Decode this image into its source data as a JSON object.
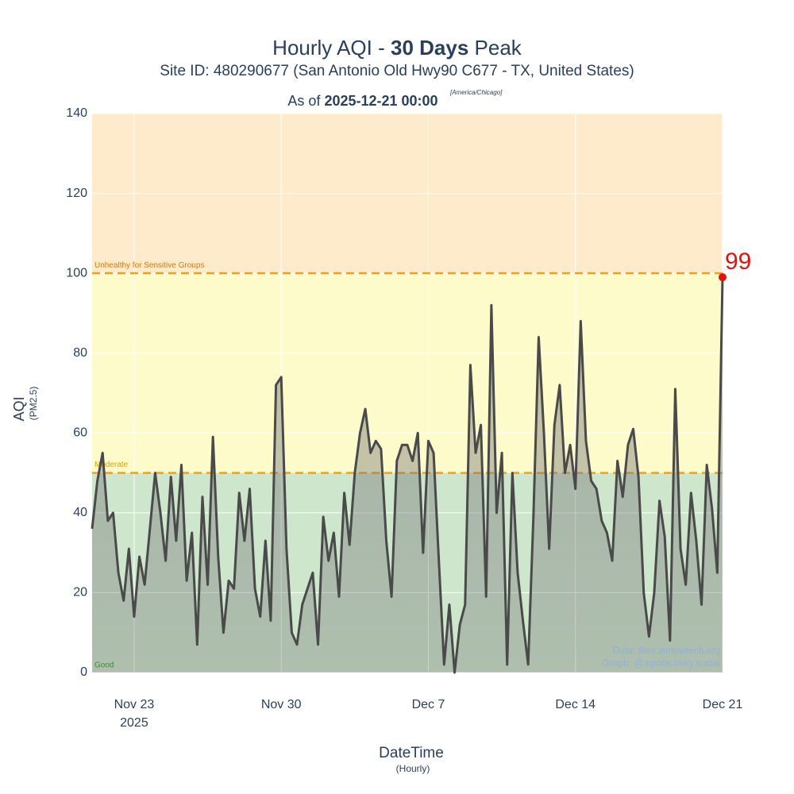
{
  "chart_data": {
    "type": "line",
    "title_parts": [
      "Hourly AQI - ",
      "30 Days",
      " Peak"
    ],
    "subtitle": "Site ID: 480290677 (San Antonio Old Hwy90 C677 - TX, United States)",
    "asof_parts": [
      "As of ",
      "2025-12-21 00:00"
    ],
    "timezone": "[America/Chicago]",
    "y_title": "AQI",
    "y_subtitle": "(PM2.5)",
    "x_title": "DateTime",
    "x_subtitle": "(Hourly)",
    "credits": [
      "Data: files.airnowtech.org",
      "Graph: @aqiobs.bsky.social"
    ],
    "xlim": [
      "2025-11-21 00:00",
      "2025-12-21 00:00"
    ],
    "xticks": [
      {
        "value": "2025-11-23 00:00",
        "label": "Nov 23"
      },
      {
        "value": "2025-11-30 00:00",
        "label": "Nov 30"
      },
      {
        "value": "2025-12-07 00:00",
        "label": "Dec 7"
      },
      {
        "value": "2025-12-14 00:00",
        "label": "Dec 14"
      },
      {
        "value": "2025-12-21 00:00",
        "label": "Dec 21"
      }
    ],
    "xtick_year": "2025",
    "ylim": [
      0,
      140
    ],
    "yticks": [
      0,
      20,
      40,
      60,
      80,
      100,
      120,
      140
    ],
    "grid": true,
    "bands": [
      {
        "name": "Good",
        "from": 0,
        "to": 50,
        "color": "#cde6cc",
        "label_color": "#1a9a1a"
      },
      {
        "name": "Moderate",
        "from": 50,
        "to": 100,
        "color": "#fefbcb",
        "label_color": "#e0a000"
      },
      {
        "name": "Unhealthy for Sensitive Groups",
        "from": 100,
        "to": 140,
        "color": "#fdebcb",
        "label_color": "#e07800"
      }
    ],
    "series": [
      {
        "name": "AQI",
        "color": "#4a4a4a",
        "peak_color": "#e3120b",
        "x": [
          "2025-11-21 00:00",
          "2025-11-21 06:00",
          "2025-11-21 12:00",
          "2025-11-21 18:00",
          "2025-11-22 00:00",
          "2025-11-22 06:00",
          "2025-11-22 12:00",
          "2025-11-22 18:00",
          "2025-11-23 00:00",
          "2025-11-23 06:00",
          "2025-11-23 12:00",
          "2025-11-23 18:00",
          "2025-11-24 00:00",
          "2025-11-24 06:00",
          "2025-11-24 12:00",
          "2025-11-24 18:00",
          "2025-11-25 00:00",
          "2025-11-25 06:00",
          "2025-11-25 12:00",
          "2025-11-25 18:00",
          "2025-11-26 00:00",
          "2025-11-26 06:00",
          "2025-11-26 12:00",
          "2025-11-26 18:00",
          "2025-11-27 00:00",
          "2025-11-27 06:00",
          "2025-11-27 12:00",
          "2025-11-27 18:00",
          "2025-11-28 00:00",
          "2025-11-28 06:00",
          "2025-11-28 12:00",
          "2025-11-28 18:00",
          "2025-11-29 00:00",
          "2025-11-29 06:00",
          "2025-11-29 12:00",
          "2025-11-29 18:00",
          "2025-11-30 00:00",
          "2025-11-30 06:00",
          "2025-11-30 12:00",
          "2025-11-30 18:00",
          "2025-12-01 00:00",
          "2025-12-01 06:00",
          "2025-12-01 12:00",
          "2025-12-01 18:00",
          "2025-12-02 00:00",
          "2025-12-02 06:00",
          "2025-12-02 12:00",
          "2025-12-02 18:00",
          "2025-12-03 00:00",
          "2025-12-03 06:00",
          "2025-12-03 12:00",
          "2025-12-03 18:00",
          "2025-12-04 00:00",
          "2025-12-04 06:00",
          "2025-12-04 12:00",
          "2025-12-04 18:00",
          "2025-12-05 00:00",
          "2025-12-05 06:00",
          "2025-12-05 12:00",
          "2025-12-05 18:00",
          "2025-12-06 00:00",
          "2025-12-06 06:00",
          "2025-12-06 12:00",
          "2025-12-06 18:00",
          "2025-12-07 00:00",
          "2025-12-07 06:00",
          "2025-12-07 12:00",
          "2025-12-07 18:00",
          "2025-12-08 00:00",
          "2025-12-08 06:00",
          "2025-12-08 12:00",
          "2025-12-08 18:00",
          "2025-12-09 00:00",
          "2025-12-09 06:00",
          "2025-12-09 12:00",
          "2025-12-09 18:00",
          "2025-12-10 00:00",
          "2025-12-10 06:00",
          "2025-12-10 12:00",
          "2025-12-10 18:00",
          "2025-12-11 00:00",
          "2025-12-11 06:00",
          "2025-12-11 12:00",
          "2025-12-11 18:00",
          "2025-12-12 00:00",
          "2025-12-12 06:00",
          "2025-12-12 12:00",
          "2025-12-12 18:00",
          "2025-12-13 00:00",
          "2025-12-13 06:00",
          "2025-12-13 12:00",
          "2025-12-13 18:00",
          "2025-12-14 00:00",
          "2025-12-14 06:00",
          "2025-12-14 12:00",
          "2025-12-14 18:00",
          "2025-12-15 00:00",
          "2025-12-15 06:00",
          "2025-12-15 12:00",
          "2025-12-15 18:00",
          "2025-12-16 00:00",
          "2025-12-16 06:00",
          "2025-12-16 12:00",
          "2025-12-16 18:00",
          "2025-12-17 00:00",
          "2025-12-17 06:00",
          "2025-12-17 12:00",
          "2025-12-17 18:00",
          "2025-12-18 00:00",
          "2025-12-18 06:00",
          "2025-12-18 12:00",
          "2025-12-18 18:00",
          "2025-12-19 00:00",
          "2025-12-19 06:00",
          "2025-12-19 12:00",
          "2025-12-19 18:00",
          "2025-12-20 00:00",
          "2025-12-20 06:00",
          "2025-12-20 12:00",
          "2025-12-20 18:00",
          "2025-12-21 00:00"
        ],
        "values": [
          36,
          48,
          55,
          38,
          40,
          25,
          18,
          31,
          14,
          29,
          22,
          36,
          50,
          40,
          28,
          49,
          33,
          52,
          23,
          35,
          7,
          44,
          22,
          59,
          29,
          10,
          23,
          21,
          45,
          33,
          46,
          21,
          14,
          33,
          13,
          72,
          74,
          31,
          10,
          7,
          17,
          21,
          25,
          7,
          39,
          28,
          35,
          19,
          45,
          32,
          50,
          60,
          66,
          55,
          58,
          56,
          33,
          19,
          53,
          57,
          57,
          53,
          60,
          30,
          58,
          55,
          28,
          2,
          17,
          0,
          12,
          17,
          77,
          55,
          62,
          19,
          92,
          40,
          55,
          2,
          50,
          25,
          13,
          2,
          39,
          84,
          60,
          31,
          62,
          72,
          50,
          57,
          46,
          88,
          58,
          48,
          46,
          38,
          35,
          28,
          53,
          44,
          57,
          61,
          49,
          20,
          9,
          20,
          43,
          34,
          8,
          71,
          31,
          22,
          45,
          33,
          17,
          52,
          41,
          25,
          99
        ]
      }
    ]
  }
}
